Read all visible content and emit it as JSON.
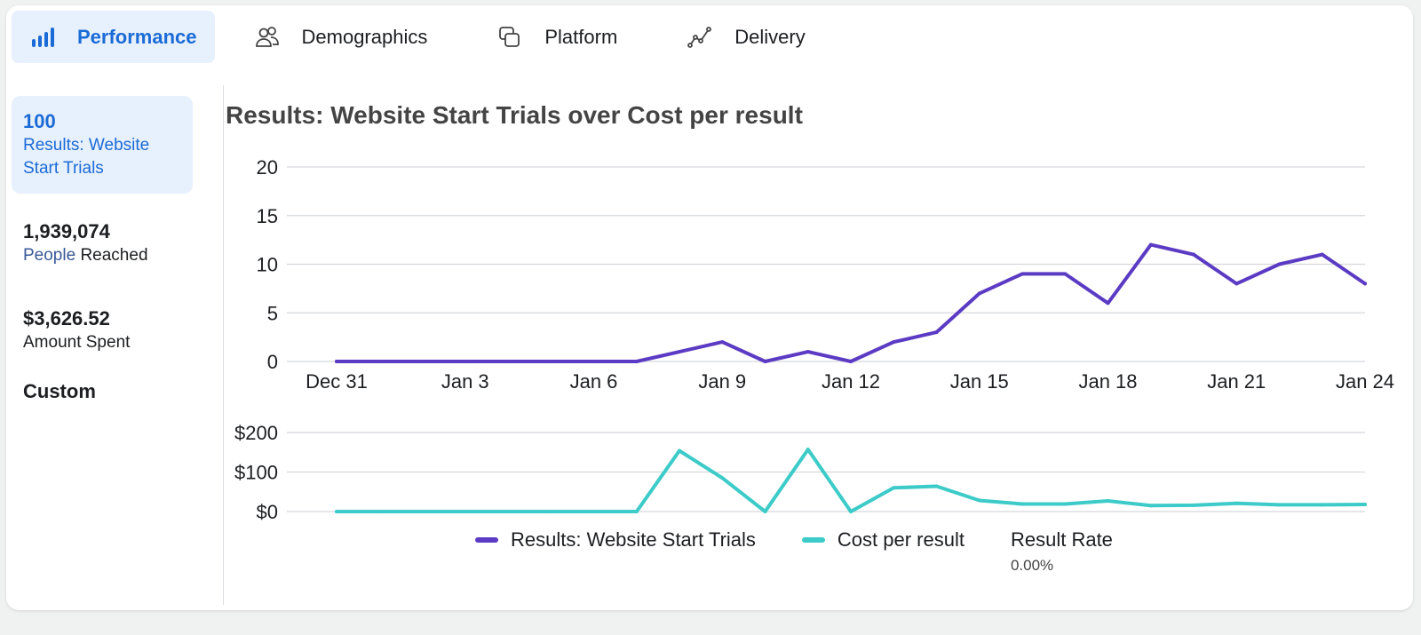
{
  "tabs": [
    {
      "label": "Performance",
      "icon": "bar-chart-icon",
      "active": true
    },
    {
      "label": "Demographics",
      "icon": "people-icon",
      "active": false
    },
    {
      "label": "Platform",
      "icon": "platform-icon",
      "active": false
    },
    {
      "label": "Delivery",
      "icon": "delivery-icon",
      "active": false
    }
  ],
  "sidebar": {
    "metrics": [
      {
        "value": "100",
        "label": "Results: Website Start Trials"
      },
      {
        "value": "1,939,074",
        "label_highlight": "People",
        "label_rest": " Reached"
      },
      {
        "value": "$3,626.52",
        "label": "Amount Spent"
      }
    ],
    "custom_label": "Custom"
  },
  "legend": {
    "results": "Results: Website Start Trials",
    "cost": "Cost per result",
    "rate_label": "Result Rate",
    "rate_value": "0.00%"
  },
  "colors": {
    "accent": "#1b6bd6",
    "results_series": "#5c3bc4",
    "cost_series": "#3ccbc8"
  },
  "chart_data": [
    {
      "type": "line",
      "title": "Results: Website Start Trials over Cost per result",
      "x": [
        "Dec 31",
        "Jan 1",
        "Jan 2",
        "Jan 3",
        "Jan 4",
        "Jan 5",
        "Jan 6",
        "Jan 7",
        "Jan 8",
        "Jan 9",
        "Jan 10",
        "Jan 11",
        "Jan 12",
        "Jan 13",
        "Jan 14",
        "Jan 15",
        "Jan 16",
        "Jan 17",
        "Jan 18",
        "Jan 19",
        "Jan 20",
        "Jan 21",
        "Jan 22",
        "Jan 23",
        "Jan 24"
      ],
      "x_ticks": [
        "Dec 31",
        "Jan 3",
        "Jan 6",
        "Jan 9",
        "Jan 12",
        "Jan 15",
        "Jan 18",
        "Jan 21",
        "Jan 24"
      ],
      "series": [
        {
          "name": "Results: Website Start Trials",
          "values": [
            0,
            0,
            0,
            0,
            0,
            0,
            0,
            0,
            1,
            2,
            0,
            1,
            0,
            2,
            3,
            7,
            9,
            9,
            6,
            12,
            11,
            8,
            10,
            11,
            8
          ]
        }
      ],
      "ylim": [
        0,
        20
      ],
      "y_ticks": [
        "0",
        "5",
        "10",
        "15",
        "20"
      ],
      "grid": true
    },
    {
      "type": "line",
      "x": [
        "Dec 31",
        "Jan 1",
        "Jan 2",
        "Jan 3",
        "Jan 4",
        "Jan 5",
        "Jan 6",
        "Jan 7",
        "Jan 8",
        "Jan 9",
        "Jan 10",
        "Jan 11",
        "Jan 12",
        "Jan 13",
        "Jan 14",
        "Jan 15",
        "Jan 16",
        "Jan 17",
        "Jan 18",
        "Jan 19",
        "Jan 20",
        "Jan 21",
        "Jan 22",
        "Jan 23",
        "Jan 24"
      ],
      "series": [
        {
          "name": "Cost per result",
          "values": [
            0,
            0,
            0,
            0,
            0,
            0,
            0,
            0,
            154,
            85,
            0,
            157,
            0,
            60,
            64,
            28,
            19,
            19,
            27,
            15,
            16,
            21,
            17,
            17,
            18
          ]
        }
      ],
      "ylim": [
        0,
        200
      ],
      "y_ticks": [
        "$0",
        "$100",
        "$200"
      ],
      "grid": true
    }
  ]
}
